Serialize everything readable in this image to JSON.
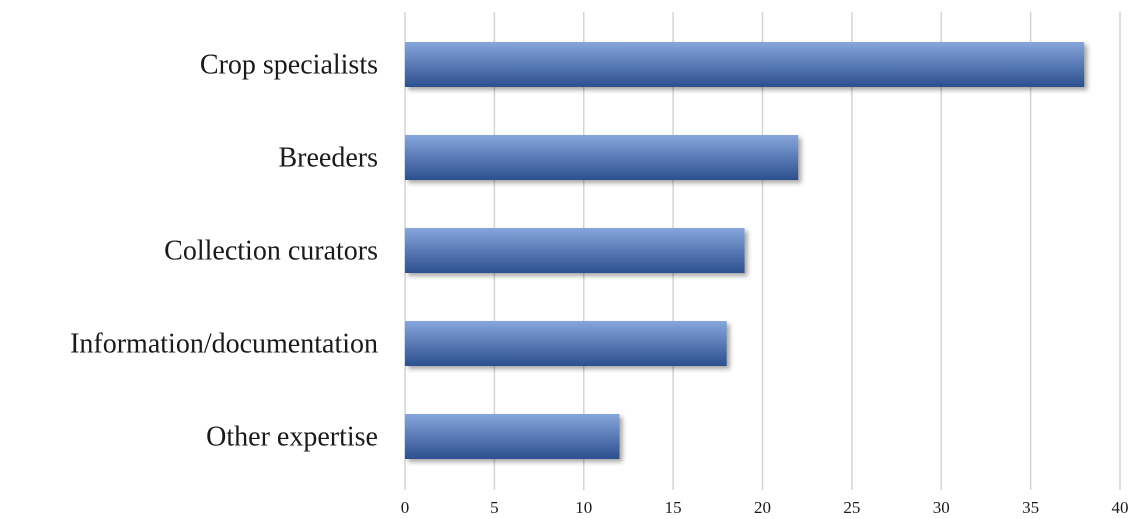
{
  "chart_data": {
    "type": "bar",
    "orientation": "horizontal",
    "categories": [
      "Crop specialists",
      "Breeders",
      "Collection curators",
      "Information/documentation",
      "Other expertise"
    ],
    "values": [
      38,
      22,
      19,
      18,
      12
    ],
    "xlim": [
      0,
      40
    ],
    "xticks": [
      0,
      5,
      10,
      15,
      20,
      25,
      30,
      35,
      40
    ],
    "grid": "vertical",
    "legend": "none",
    "bar_color_light": "#86a6dc",
    "bar_color_dark": "#2c4f8e"
  }
}
